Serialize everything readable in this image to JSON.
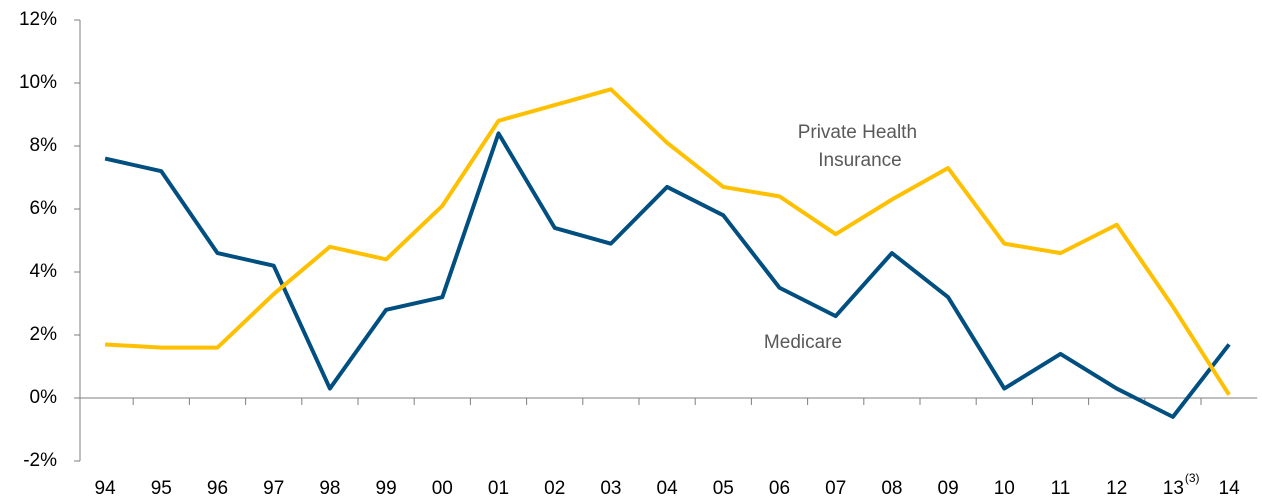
{
  "chart_data": {
    "type": "line",
    "categories": [
      "94",
      "95",
      "96",
      "97",
      "98",
      "99",
      "00",
      "01",
      "02",
      "03",
      "04",
      "05",
      "06",
      "07",
      "08",
      "09",
      "10",
      "11",
      "12",
      "13",
      "14"
    ],
    "superscripts": {
      "19": "(3)"
    },
    "series": [
      {
        "name": "Medicare",
        "color": "#004f80",
        "values": [
          7.6,
          7.2,
          4.6,
          4.2,
          0.3,
          2.8,
          3.2,
          8.4,
          5.4,
          4.9,
          6.7,
          5.8,
          3.5,
          2.6,
          4.6,
          3.2,
          0.3,
          1.4,
          0.3,
          -0.6,
          1.7
        ]
      },
      {
        "name": "Private Health Insurance",
        "color": "#ffc000",
        "values": [
          1.7,
          1.6,
          1.6,
          3.3,
          4.8,
          4.4,
          6.1,
          8.8,
          9.3,
          9.8,
          8.1,
          6.7,
          6.4,
          5.2,
          6.3,
          7.3,
          4.9,
          4.6,
          5.5,
          2.9,
          0.1
        ]
      }
    ],
    "ylim": [
      -2,
      12
    ],
    "yticks": [
      {
        "value": -2,
        "label": "-2%"
      },
      {
        "value": 0,
        "label": "0%"
      },
      {
        "value": 2,
        "label": "2%"
      },
      {
        "value": 4,
        "label": "4%"
      },
      {
        "value": 6,
        "label": "6%"
      },
      {
        "value": 8,
        "label": "8%"
      },
      {
        "value": 10,
        "label": "10%"
      },
      {
        "value": 12,
        "label": "12%"
      }
    ],
    "grid": false
  }
}
